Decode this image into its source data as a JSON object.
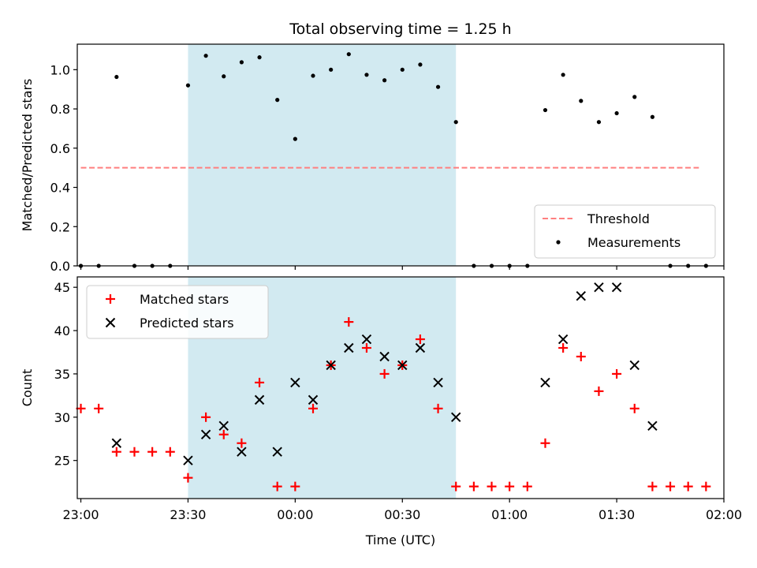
{
  "figure": {
    "title": "Total observing time = 1.25 h"
  },
  "colors": {
    "highlight": "#add8e6",
    "threshold": "#ff7f7f",
    "matched": "#ff0000",
    "predicted": "#000000",
    "measurement": "#000000"
  },
  "chart_data": [
    {
      "type": "scatter",
      "title": "Total observing time = 1.25 h",
      "ylabel": "Matched/Predicted stars",
      "xlabel": "",
      "xlim": [
        "22:59",
        "02:00"
      ],
      "ylim": [
        0,
        1.13
      ],
      "y_ticks": [
        "0.0",
        "0.2",
        "0.4",
        "0.6",
        "0.8",
        "1.0"
      ],
      "shaded_interval": [
        "23:30",
        "00:45"
      ],
      "legend": {
        "placement": "lower-right",
        "entries": [
          "Threshold",
          "Measurements"
        ]
      },
      "series": [
        {
          "name": "Threshold",
          "kind": "dashed-line",
          "x": [
            "23:00",
            "01:53"
          ],
          "y": [
            0.5,
            0.5
          ]
        },
        {
          "name": "Measurements",
          "kind": "dots",
          "x": [
            "23:00",
            "23:05",
            "23:10",
            "23:15",
            "23:20",
            "23:25",
            "23:30",
            "23:35",
            "23:40",
            "23:45",
            "23:50",
            "23:55",
            "00:00",
            "00:05",
            "00:10",
            "00:15",
            "00:20",
            "00:25",
            "00:30",
            "00:35",
            "00:40",
            "00:45",
            "00:50",
            "00:55",
            "01:00",
            "01:05",
            "01:10",
            "01:15",
            "01:20",
            "01:25",
            "01:30",
            "01:35",
            "01:40",
            "01:45",
            "01:50",
            "01:55"
          ],
          "y": [
            0,
            0,
            0.963,
            0,
            0,
            0,
            0.92,
            1.071,
            0.966,
            1.038,
            1.063,
            0.846,
            0.647,
            0.969,
            1.0,
            1.079,
            0.974,
            0.946,
            1.0,
            1.026,
            0.912,
            0.733,
            0,
            0,
            0,
            0,
            0.794,
            0.974,
            0.841,
            0.733,
            0.778,
            0.861,
            0.759,
            0,
            0,
            0
          ]
        }
      ]
    },
    {
      "type": "scatter",
      "title": "",
      "ylabel": "Count",
      "xlabel": "Time (UTC)",
      "xlim": [
        "22:59",
        "02:00"
      ],
      "x_ticks": [
        "23:00",
        "23:30",
        "00:00",
        "00:30",
        "01:00",
        "01:30",
        "02:00"
      ],
      "ylim": [
        20.6,
        46.2
      ],
      "y_ticks": [
        "25",
        "30",
        "35",
        "40",
        "45"
      ],
      "shaded_interval": [
        "23:30",
        "00:45"
      ],
      "legend": {
        "placement": "upper-left",
        "entries": [
          "Matched stars",
          "Predicted stars"
        ]
      },
      "series": [
        {
          "name": "Matched stars",
          "kind": "plus",
          "x": [
            "23:00",
            "23:05",
            "23:10",
            "23:15",
            "23:20",
            "23:25",
            "23:30",
            "23:35",
            "23:40",
            "23:45",
            "23:50",
            "23:55",
            "00:00",
            "00:05",
            "00:10",
            "00:15",
            "00:20",
            "00:25",
            "00:30",
            "00:35",
            "00:40",
            "00:45",
            "00:50",
            "00:55",
            "01:00",
            "01:05",
            "01:10",
            "01:15",
            "01:20",
            "01:25",
            "01:30",
            "01:35",
            "01:40",
            "01:45",
            "01:50",
            "01:55"
          ],
          "y": [
            31,
            31,
            26,
            26,
            26,
            26,
            23,
            30,
            28,
            27,
            34,
            22,
            22,
            31,
            36,
            41,
            38,
            35,
            36,
            39,
            31,
            22,
            22,
            22,
            22,
            22,
            27,
            38,
            37,
            33,
            35,
            31,
            22,
            22,
            22,
            22
          ]
        },
        {
          "name": "Predicted stars",
          "kind": "cross",
          "x": [
            "23:10",
            "23:30",
            "23:35",
            "23:40",
            "23:45",
            "23:50",
            "23:55",
            "00:00",
            "00:05",
            "00:10",
            "00:15",
            "00:20",
            "00:25",
            "00:30",
            "00:35",
            "00:40",
            "00:45",
            "01:10",
            "01:15",
            "01:20",
            "01:25",
            "01:30",
            "01:35",
            "01:40"
          ],
          "y": [
            27,
            25,
            28,
            29,
            26,
            32,
            26,
            34,
            32,
            36,
            38,
            39,
            37,
            36,
            38,
            34,
            30,
            34,
            39,
            44,
            45,
            45,
            36,
            29
          ]
        }
      ]
    }
  ]
}
